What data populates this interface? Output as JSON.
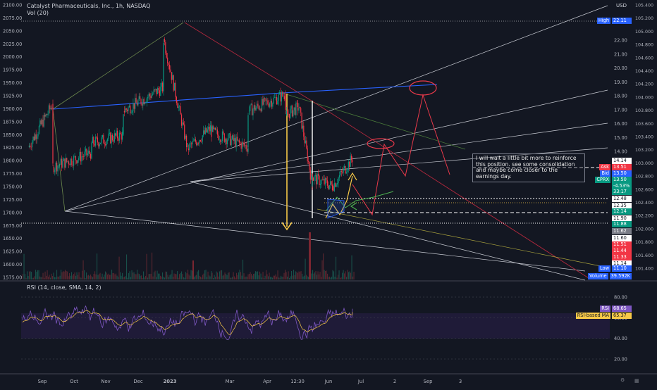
{
  "header": {
    "title": "Catalyst Pharmaceuticals, Inc., 1h, NASDAQ",
    "volume": "Vol (20)"
  },
  "rsi_header": "RSI (14, close, SMA, 14, 2)",
  "currency": "USD",
  "note": "I will wait a little bit more to reinforce this position. see some consolidation and maybe come closer to the earnings day.",
  "price_tags": [
    {
      "label": "High",
      "value": "22.11",
      "bg": "#2962ff"
    },
    {
      "label": "",
      "value": "14.14",
      "bg": "#ffffff",
      "fg": "#131722"
    },
    {
      "label": "Ask",
      "value": "13.51",
      "bg": "#f23645"
    },
    {
      "label": "Bid",
      "value": "13.50",
      "bg": "#2962ff"
    },
    {
      "label": "CPRX",
      "value": "13.50",
      "bg": "#089981"
    },
    {
      "label": "",
      "value": "-4.53%",
      "bg": "#089981"
    },
    {
      "label": "",
      "value": "33:17",
      "bg": "#089981"
    },
    {
      "label": "",
      "value": "12.48",
      "bg": "#ffffff",
      "fg": "#131722"
    },
    {
      "label": "",
      "value": "12.35",
      "bg": "#ffffff",
      "fg": "#131722"
    },
    {
      "label": "",
      "value": "12.14",
      "bg": "#089981"
    },
    {
      "label": "",
      "value": "11.90",
      "bg": "#ffffff",
      "fg": "#131722"
    },
    {
      "label": "",
      "value": "11.88",
      "bg": "#089981"
    },
    {
      "label": "",
      "value": "11.62",
      "bg": "#787b86"
    },
    {
      "label": "",
      "value": "11.60",
      "bg": "#ffffff",
      "fg": "#131722"
    },
    {
      "label": "",
      "value": "11.51",
      "bg": "#f23645"
    },
    {
      "label": "",
      "value": "11.44",
      "bg": "#f23645"
    },
    {
      "label": "",
      "value": "11.33",
      "bg": "#f23645"
    },
    {
      "label": "",
      "value": "11.14",
      "bg": "#ffffff",
      "fg": "#131722"
    },
    {
      "label": "Low",
      "value": "11.10",
      "bg": "#2962ff"
    },
    {
      "label": "Volume",
      "value": "39.592K",
      "bg": "#2962ff"
    },
    {
      "label": "RSI",
      "value": "68.65",
      "bg": "#7e57c2"
    },
    {
      "label": "RSI-based MA",
      "value": "65.37",
      "bg": "#f7c948",
      "fg": "#131722"
    }
  ],
  "chart_data": [
    {
      "type": "line",
      "title": "Catalyst Pharmaceuticals, Inc., 1h, NASDAQ",
      "left_axis_ticks": [
        2100,
        2075,
        2050,
        2025,
        2000,
        1975,
        1950,
        1925,
        1900,
        1875,
        1850,
        1825,
        1800,
        1775,
        1750,
        1725,
        1700,
        1675,
        1650,
        1625,
        1600,
        1575
      ],
      "price_axis_ticks": [
        22.0,
        21.0,
        20.0,
        19.0,
        18.0,
        17.0,
        16.0,
        15.0,
        14.0
      ],
      "far_right_axis_ticks": [
        "105.400",
        "105.200",
        "105.000",
        "104.800",
        "104.600",
        "104.400",
        "104.200",
        "104.000",
        "103.800",
        "103.600",
        "103.400",
        "103.200",
        "103.000",
        "102.800",
        "102.600",
        "102.400",
        "102.200",
        "102.000",
        "101.800",
        "101.600",
        "101.400"
      ],
      "x_tick_labels": [
        "Sep",
        "Oct",
        "Nov",
        "Dec",
        "2023",
        "Mar",
        "Apr",
        "12:30",
        "Jun",
        "Jul",
        "2",
        "Sep",
        "3"
      ],
      "price_path_points": [
        [
          "Sep",
          14.3
        ],
        [
          "Sep",
          17.4
        ],
        [
          "Oct",
          12.9
        ],
        [
          "Oct",
          13.9
        ],
        [
          "Nov",
          14.6
        ],
        [
          "Nov",
          15.2
        ],
        [
          "Dec",
          16.9
        ],
        [
          "Dec",
          18.6
        ],
        [
          "2023",
          22.1
        ],
        [
          "2023",
          14.2
        ],
        [
          "2023",
          15.7
        ],
        [
          "Mar",
          15.4
        ],
        [
          "Mar",
          14.3
        ],
        [
          "Apr",
          16.9
        ],
        [
          "Apr",
          18.1
        ],
        [
          "12:30",
          16.6
        ],
        [
          "12:30",
          17.2
        ],
        [
          "12:30",
          11.6
        ],
        [
          "Jun",
          12.1
        ],
        [
          "Jun",
          11.5
        ],
        [
          "Jun",
          13.5
        ]
      ],
      "rsi": {
        "value": 68.65,
        "ma": 65.37,
        "levels": [
          80.0,
          60.0,
          40.0,
          20.0
        ]
      },
      "grid": false
    }
  ],
  "footer_icons": [
    "calendar-icon",
    "settings-icon"
  ]
}
